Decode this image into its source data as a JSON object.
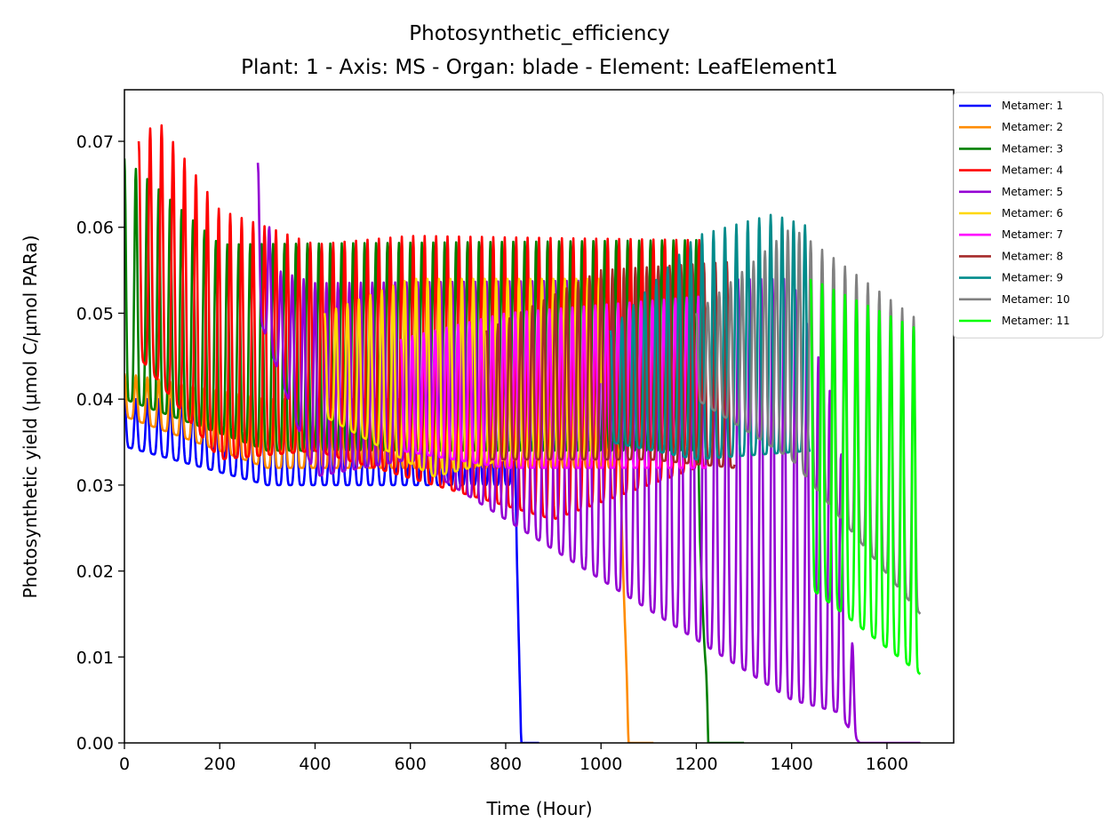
{
  "chart_data": {
    "type": "line",
    "title": "Photosynthetic_efficiency",
    "subtitle": "Plant: 1 - Axis: MS - Organ: blade - Element: LeafElement1",
    "xlabel": "Time (Hour)",
    "ylabel": "Photosynthetic yield (µmol C/µmol PARa)",
    "xlim": [
      0,
      1740
    ],
    "ylim": [
      0,
      0.076
    ],
    "xticks": [
      "0",
      "200",
      "400",
      "600",
      "800",
      "1000",
      "1200",
      "1400",
      "1600"
    ],
    "yticks": [
      "0.00",
      "0.01",
      "0.02",
      "0.03",
      "0.04",
      "0.05",
      "0.06",
      "0.07"
    ],
    "grid": false,
    "legend_position": "outside-top-right",
    "cycle_period_hours": 24,
    "series": [
      {
        "name": "Metamer: 1",
        "color": "#0000ff",
        "start": 0,
        "end": 870,
        "low": [
          [
            0,
            0.0345
          ],
          [
            300,
            0.03
          ],
          [
            820,
            0.03
          ]
        ],
        "high": [
          [
            0,
            0.04
          ],
          [
            820,
            0.04
          ]
        ],
        "senescence_start": 820,
        "tail_value": 0.0
      },
      {
        "name": "Metamer: 2",
        "color": "#ff8c00",
        "start": 0,
        "end": 1110,
        "low": [
          [
            0,
            0.038
          ],
          [
            300,
            0.032
          ],
          [
            1040,
            0.032
          ]
        ],
        "high": [
          [
            0,
            0.043
          ],
          [
            300,
            0.04
          ],
          [
            1040,
            0.04
          ]
        ],
        "senescence_start": 1040,
        "tail_value": 0.0
      },
      {
        "name": "Metamer: 3",
        "color": "#008000",
        "start": 0,
        "end": 1300,
        "low": [
          [
            0,
            0.04
          ],
          [
            300,
            0.034
          ],
          [
            1200,
            0.034
          ]
        ],
        "high": [
          [
            0,
            0.068
          ],
          [
            200,
            0.058
          ],
          [
            1200,
            0.0585
          ]
        ],
        "senescence_start": 1200,
        "tail_value": 0.0
      },
      {
        "name": "Metamer: 4",
        "color": "#ff0000",
        "start": 30,
        "end": 1220,
        "low": [
          [
            30,
            0.045
          ],
          [
            200,
            0.033
          ],
          [
            400,
            0.034
          ],
          [
            900,
            0.026
          ],
          [
            1200,
            0.032
          ]
        ],
        "high": [
          [
            30,
            0.07
          ],
          [
            70,
            0.0725
          ],
          [
            200,
            0.062
          ],
          [
            400,
            0.058
          ],
          [
            600,
            0.059
          ],
          [
            1200,
            0.0585
          ]
        ],
        "senescence_start": 1220,
        "tail_value": 0.0
      },
      {
        "name": "Metamer: 5",
        "color": "#9400d3",
        "start": 280,
        "end": 1670,
        "low": [
          [
            280,
            0.05
          ],
          [
            400,
            0.031
          ],
          [
            600,
            0.033
          ],
          [
            1400,
            0.005
          ],
          [
            1670,
            0.001
          ]
        ],
        "high": [
          [
            280,
            0.0675
          ],
          [
            320,
            0.055
          ],
          [
            400,
            0.0535
          ],
          [
            1400,
            0.054
          ],
          [
            1670,
            0.01
          ]
        ],
        "senescence_start": 1500,
        "tail_value": 0.0
      },
      {
        "name": "Metamer: 6",
        "color": "#ffd700",
        "start": 420,
        "end": 1000,
        "low": [
          [
            420,
            0.038
          ],
          [
            650,
            0.031
          ],
          [
            800,
            0.033
          ],
          [
            1000,
            0.033
          ]
        ],
        "high": [
          [
            420,
            0.05
          ],
          [
            600,
            0.054
          ],
          [
            1000,
            0.054
          ]
        ],
        "senescence_start": 1000,
        "tail_value": 0.0
      },
      {
        "name": "Metamer: 7",
        "color": "#ff00ff",
        "start": 580,
        "end": 1220,
        "low": [
          [
            580,
            0.034
          ],
          [
            800,
            0.032
          ],
          [
            1220,
            0.032
          ]
        ],
        "high": [
          [
            580,
            0.047
          ],
          [
            800,
            0.05
          ],
          [
            1220,
            0.052
          ]
        ],
        "senescence_start": 1220,
        "tail_value": 0.0
      },
      {
        "name": "Metamer: 8",
        "color": "#a52a2a",
        "start": 760,
        "end": 1280,
        "low": [
          [
            760,
            0.033
          ],
          [
            1100,
            0.033
          ],
          [
            1280,
            0.032
          ]
        ],
        "high": [
          [
            760,
            0.048
          ],
          [
            1000,
            0.055
          ],
          [
            1280,
            0.056
          ]
        ],
        "senescence_start": 1280,
        "tail_value": 0.0
      },
      {
        "name": "Metamer: 9",
        "color": "#008b8b",
        "start": 1020,
        "end": 1440,
        "low": [
          [
            1020,
            0.035
          ],
          [
            1200,
            0.033
          ],
          [
            1440,
            0.034
          ]
        ],
        "high": [
          [
            1020,
            0.048
          ],
          [
            1200,
            0.059
          ],
          [
            1360,
            0.0615
          ],
          [
            1440,
            0.06
          ]
        ],
        "senescence_start": 1440,
        "tail_value": 0.0
      },
      {
        "name": "Metamer: 10",
        "color": "#808080",
        "start": 1200,
        "end": 1670,
        "low": [
          [
            1200,
            0.04
          ],
          [
            1400,
            0.033
          ],
          [
            1670,
            0.015
          ]
        ],
        "high": [
          [
            1200,
            0.05
          ],
          [
            1400,
            0.06
          ],
          [
            1670,
            0.049
          ]
        ],
        "senescence_start": 1670,
        "tail_value": 0.0
      },
      {
        "name": "Metamer: 11",
        "color": "#00ff00",
        "start": 1440,
        "end": 1670,
        "low": [
          [
            1440,
            0.018
          ],
          [
            1670,
            0.008
          ]
        ],
        "high": [
          [
            1440,
            0.054
          ],
          [
            1670,
            0.048
          ]
        ],
        "senescence_start": 1670,
        "tail_value": 0.0
      }
    ]
  }
}
